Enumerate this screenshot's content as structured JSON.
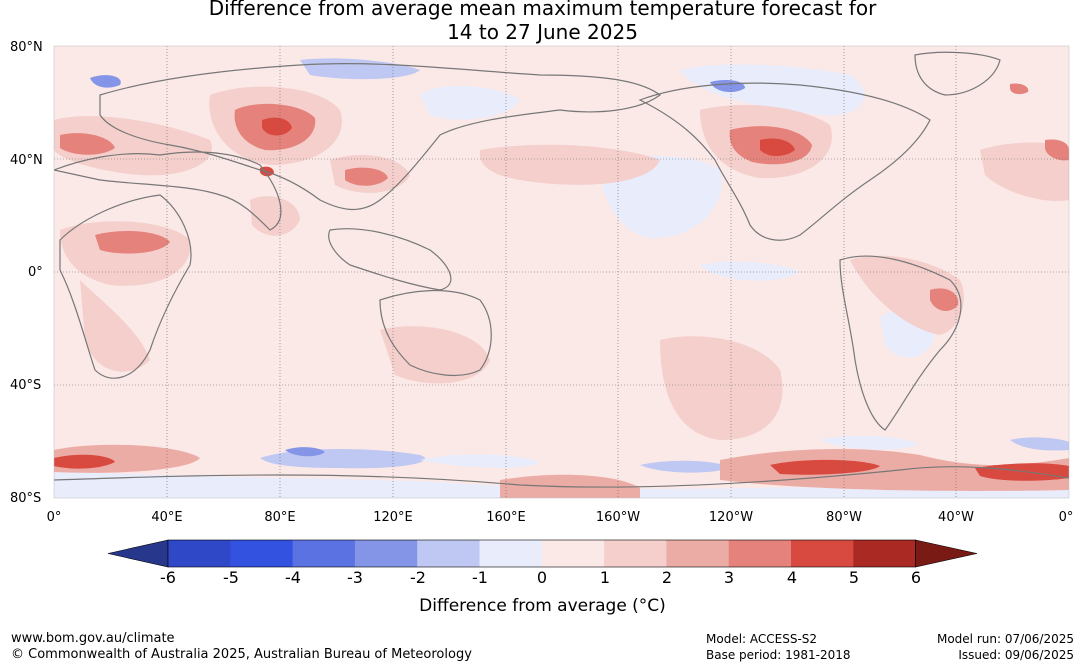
{
  "title": {
    "line1": "Difference from average mean maximum temperature forecast for",
    "line2": "14 to 27 June 2025"
  },
  "map": {
    "latitude_labels": [
      "80°N",
      "40°N",
      "0°",
      "40°S",
      "80°S"
    ],
    "longitude_labels": [
      "0°",
      "40°E",
      "80°E",
      "120°E",
      "160°E",
      "160°W",
      "120°W",
      "80°W",
      "40°W",
      "0°"
    ]
  },
  "colorbar": {
    "ticks": [
      "-6",
      "-5",
      "-4",
      "-3",
      "-2",
      "-1",
      "0",
      "1",
      "2",
      "3",
      "4",
      "5",
      "6"
    ],
    "colors": [
      "#27378c",
      "#2e48c8",
      "#3452e0",
      "#5b72e2",
      "#8495e8",
      "#bfc8f2",
      "#e8ecfb",
      "#fbe9e8",
      "#f4cfcc",
      "#ecaca6",
      "#e5827b",
      "#d84a40",
      "#aa2a23",
      "#7a1a14"
    ],
    "label": "Difference from average (°C)"
  },
  "footer": {
    "url": "www.bom.gov.au/climate",
    "copyright": "© Commonwealth of Australia 2025, Australian Bureau of Meteorology",
    "model": "Model: ACCESS-S2",
    "base_period": "Base period: 1981-2018",
    "model_run": "Model run: 07/06/2025",
    "issued": "Issued: 09/06/2025"
  }
}
